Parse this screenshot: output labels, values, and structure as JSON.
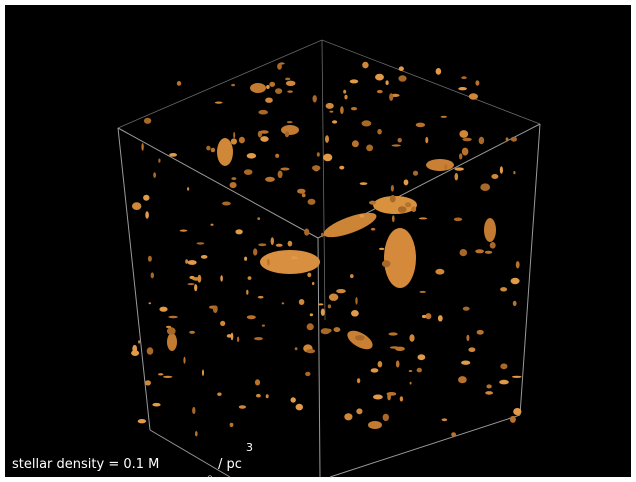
{
  "caption": {
    "text": "stellar density = 0.1 M",
    "subscript": "⊙",
    "unit": "/ pc",
    "superscript": "3"
  }
}
